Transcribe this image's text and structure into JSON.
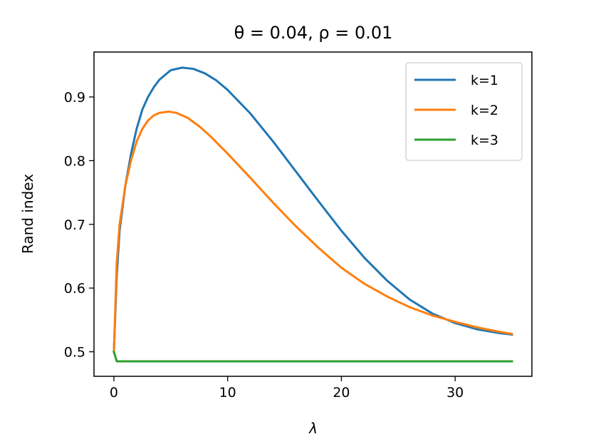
{
  "chart_data": {
    "type": "line",
    "title": "θ = 0.04, ρ = 0.01",
    "xlabel": "λ",
    "ylabel": "Rand index",
    "xlim": [
      -1.75,
      36.75
    ],
    "ylim": [
      0.4615,
      0.9705
    ],
    "xticks": [
      0,
      10,
      20,
      30
    ],
    "yticks": [
      0.5,
      0.6,
      0.7,
      0.8,
      0.9
    ],
    "xtick_labels": [
      "0",
      "10",
      "20",
      "30"
    ],
    "ytick_labels": [
      "0.5",
      "0.6",
      "0.7",
      "0.8",
      "0.9"
    ],
    "grid": false,
    "legend_position": "top-right",
    "series": [
      {
        "name": "k=1",
        "color": "#1f77b4",
        "x": [
          0,
          0.25,
          0.5,
          1,
          1.5,
          2,
          2.5,
          3,
          3.5,
          4,
          5,
          6,
          7,
          8,
          9,
          10,
          12,
          14,
          16,
          18,
          20,
          22,
          24,
          26,
          28,
          30,
          32,
          34,
          35
        ],
        "y": [
          0.5,
          0.62,
          0.69,
          0.76,
          0.81,
          0.85,
          0.88,
          0.9,
          0.915,
          0.927,
          0.942,
          0.946,
          0.944,
          0.937,
          0.926,
          0.911,
          0.874,
          0.83,
          0.783,
          0.736,
          0.69,
          0.648,
          0.612,
          0.582,
          0.56,
          0.545,
          0.535,
          0.529,
          0.527
        ]
      },
      {
        "name": "k=2",
        "color": "#ff7f0e",
        "x": [
          0,
          0.25,
          0.5,
          1,
          1.5,
          2,
          2.5,
          3,
          3.5,
          4,
          4.8,
          5.5,
          6.5,
          7.5,
          8.5,
          10,
          12,
          14,
          16,
          18,
          20,
          22,
          24,
          26,
          28,
          30,
          32,
          34,
          35
        ],
        "y": [
          0.5,
          0.64,
          0.7,
          0.76,
          0.8,
          0.83,
          0.85,
          0.863,
          0.871,
          0.875,
          0.877,
          0.875,
          0.867,
          0.854,
          0.838,
          0.811,
          0.773,
          0.734,
          0.697,
          0.663,
          0.632,
          0.607,
          0.587,
          0.57,
          0.557,
          0.547,
          0.538,
          0.531,
          0.528
        ]
      },
      {
        "name": "k=3",
        "color": "#2ca02c",
        "x": [
          0,
          0.25,
          0.5,
          1,
          5,
          10,
          20,
          30,
          35
        ],
        "y": [
          0.5,
          0.485,
          0.485,
          0.485,
          0.485,
          0.485,
          0.485,
          0.485,
          0.485
        ]
      }
    ]
  }
}
